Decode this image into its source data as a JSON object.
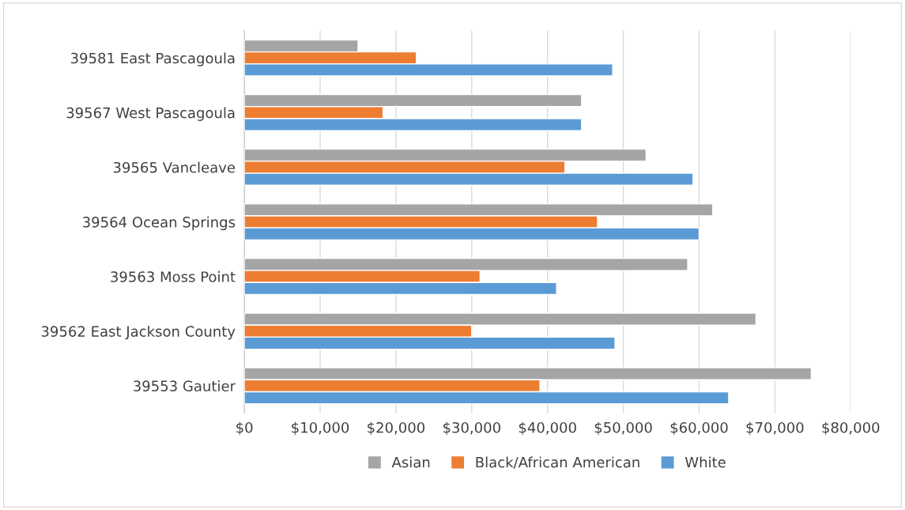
{
  "chart_data": {
    "type": "bar",
    "orientation": "horizontal",
    "categories": [
      "39581 East Pascagoula",
      "39567 West Pascagoula",
      "39565 Vancleave",
      "39564 Ocean Springs",
      "39563 Moss Point",
      "39562 East Jackson County",
      "39553 Gautier"
    ],
    "series": [
      {
        "name": "Asian",
        "color": "#a5a5a5",
        "values": [
          15000,
          44500,
          53000,
          61800,
          58500,
          67500,
          74800
        ]
      },
      {
        "name": "Black/African American",
        "color": "#ed7d31",
        "values": [
          22700,
          18300,
          42300,
          46600,
          31100,
          30000,
          39000
        ]
      },
      {
        "name": "White",
        "color": "#5b9bd5",
        "values": [
          48600,
          44500,
          59200,
          60000,
          41200,
          48900,
          63900
        ]
      }
    ],
    "xlim": [
      0,
      80000
    ],
    "xticks": [
      {
        "value": 0,
        "label": "$0"
      },
      {
        "value": 10000,
        "label": "$10,000"
      },
      {
        "value": 20000,
        "label": "$20,000"
      },
      {
        "value": 30000,
        "label": "$30,000"
      },
      {
        "value": 40000,
        "label": "$40,000"
      },
      {
        "value": 50000,
        "label": "$50,000"
      },
      {
        "value": 60000,
        "label": "$60,000"
      },
      {
        "value": 70000,
        "label": "$70,000"
      },
      {
        "value": 80000,
        "label": "$80,000"
      }
    ],
    "grid": "x",
    "legend": "bottom"
  }
}
